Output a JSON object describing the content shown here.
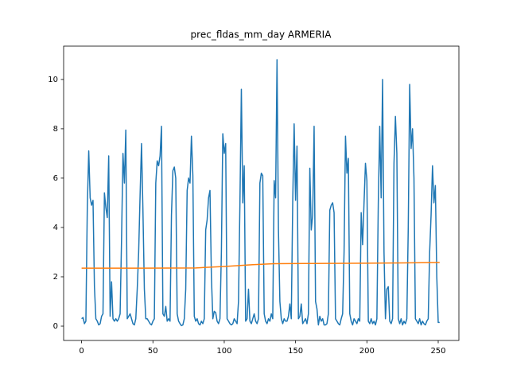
{
  "chart_data": {
    "type": "line",
    "title": "prec_fldas_mm_day ARMERIA",
    "x": [
      0,
      1,
      2,
      3,
      4,
      5,
      6,
      7,
      8,
      9,
      10,
      11,
      12,
      13,
      14,
      15,
      16,
      17,
      18,
      19,
      20,
      21,
      22,
      23,
      24,
      25,
      26,
      27,
      28,
      29,
      30,
      31,
      32,
      33,
      34,
      35,
      36,
      37,
      38,
      39,
      40,
      41,
      42,
      43,
      44,
      45,
      46,
      47,
      48,
      49,
      50,
      51,
      52,
      53,
      54,
      55,
      56,
      57,
      58,
      59,
      60,
      61,
      62,
      63,
      64,
      65,
      66,
      67,
      68,
      69,
      70,
      71,
      72,
      73,
      74,
      75,
      76,
      77,
      78,
      79,
      80,
      81,
      82,
      83,
      84,
      85,
      86,
      87,
      88,
      89,
      90,
      91,
      92,
      93,
      94,
      95,
      96,
      97,
      98,
      99,
      100,
      101,
      102,
      103,
      104,
      105,
      106,
      107,
      108,
      109,
      110,
      111,
      112,
      113,
      114,
      115,
      116,
      117,
      118,
      119,
      120,
      121,
      122,
      123,
      124,
      125,
      126,
      127,
      128,
      129,
      130,
      131,
      132,
      133,
      134,
      135,
      136,
      137,
      138,
      139,
      140,
      141,
      142,
      143,
      144,
      145,
      146,
      147,
      148,
      149,
      150,
      151,
      152,
      153,
      154,
      155,
      156,
      157,
      158,
      159,
      160,
      161,
      162,
      163,
      164,
      165,
      166,
      167,
      168,
      169,
      170,
      171,
      172,
      173,
      174,
      175,
      176,
      177,
      178,
      179,
      180,
      181,
      182,
      183,
      184,
      185,
      186,
      187,
      188,
      189,
      190,
      191,
      192,
      193,
      194,
      195,
      196,
      197,
      198,
      199,
      200,
      201,
      202,
      203,
      204,
      205,
      206,
      207,
      208,
      209,
      210,
      211,
      212,
      213,
      214,
      215,
      216,
      217,
      218,
      219,
      220,
      221,
      222,
      223,
      224,
      225,
      226,
      227,
      228,
      229,
      230,
      231,
      232,
      233,
      234,
      235,
      236,
      237,
      238,
      239,
      240,
      241,
      242,
      243,
      244,
      245,
      246,
      247,
      248,
      249,
      250,
      251
    ],
    "series": [
      {
        "color": "#1f77b4",
        "values": [
          0.3,
          0.35,
          0.1,
          0.2,
          4.8,
          7.1,
          5.2,
          4.9,
          5.1,
          1.6,
          0.3,
          0.2,
          0.05,
          0.1,
          0.4,
          0.5,
          5.4,
          4.8,
          4.4,
          6.9,
          0.4,
          1.8,
          0.3,
          0.2,
          0.3,
          0.2,
          0.3,
          0.5,
          3.5,
          7.0,
          5.8,
          7.95,
          0.3,
          0.4,
          0.5,
          0.3,
          0.1,
          0.05,
          0.3,
          1.5,
          3.0,
          5.3,
          7.4,
          4.7,
          1.5,
          0.3,
          0.3,
          0.2,
          0.1,
          0.05,
          0.2,
          0.3,
          5.8,
          6.7,
          6.5,
          6.9,
          8.1,
          0.5,
          0.4,
          0.8,
          0.2,
          0.3,
          0.2,
          4.5,
          6.3,
          6.45,
          6.0,
          0.5,
          0.2,
          0.1,
          0.02,
          0.05,
          0.3,
          1.5,
          5.5,
          6.0,
          5.8,
          7.7,
          6.1,
          0.4,
          0.2,
          0.3,
          0.1,
          0.05,
          0.2,
          0.1,
          0.3,
          3.9,
          4.3,
          5.2,
          5.5,
          2.0,
          0.3,
          0.6,
          0.55,
          0.2,
          0.1,
          0.3,
          3.0,
          7.8,
          7.0,
          7.4,
          0.3,
          0.2,
          0.1,
          0.05,
          0.1,
          0.3,
          0.2,
          0.1,
          1.0,
          5.0,
          9.6,
          5.0,
          6.5,
          0.2,
          0.3,
          1.5,
          0.2,
          0.1,
          0.3,
          0.5,
          0.2,
          0.1,
          0.3,
          5.8,
          6.2,
          6.1,
          0.5,
          0.2,
          0.1,
          0.3,
          0.2,
          0.5,
          0.3,
          5.9,
          5.2,
          10.8,
          3.9,
          1.0,
          0.3,
          0.1,
          0.3,
          0.2,
          0.2,
          0.4,
          0.9,
          0.3,
          5.0,
          8.2,
          5.1,
          7.3,
          0.3,
          0.4,
          0.9,
          0.1,
          0.2,
          0.3,
          0.1,
          0.5,
          6.4,
          3.9,
          4.5,
          8.1,
          1.0,
          0.7,
          0.05,
          0.4,
          0.2,
          0.3,
          0.05,
          0.05,
          0.1,
          0.5,
          4.7,
          4.9,
          5.0,
          4.6,
          0.3,
          0.2,
          0.1,
          0.05,
          0.3,
          0.5,
          3.0,
          7.7,
          6.2,
          6.8,
          0.5,
          0.2,
          0.05,
          0.3,
          0.2,
          0.1,
          0.3,
          0.2,
          4.6,
          3.3,
          5.0,
          6.6,
          5.9,
          0.2,
          0.1,
          0.3,
          0.1,
          0.2,
          0.05,
          0.3,
          5.0,
          8.1,
          5.2,
          10.0,
          3.0,
          0.3,
          1.5,
          1.6,
          0.2,
          0.1,
          0.3,
          6.6,
          8.5,
          7.0,
          0.3,
          0.1,
          0.3,
          0.05,
          0.2,
          0.1,
          0.3,
          4.0,
          9.8,
          7.2,
          8.0,
          6.0,
          0.3,
          0.2,
          0.1,
          0.3,
          0.05,
          0.2,
          0.1,
          0.05,
          0.2,
          0.3,
          3.0,
          4.5,
          6.5,
          5.0,
          5.7,
          2.0,
          0.15,
          0.15
        ]
      },
      {
        "color": "#ff7f0e",
        "x": [
          0,
          40,
          80,
          100,
          120,
          135,
          160,
          200,
          251
        ],
        "values": [
          2.35,
          2.35,
          2.36,
          2.42,
          2.49,
          2.53,
          2.54,
          2.55,
          2.58
        ]
      }
    ],
    "xlim": [
      -12.6,
      264.5
    ],
    "ylim": [
      -0.58,
      11.35
    ],
    "xticks": [
      0,
      50,
      100,
      150,
      200,
      250
    ],
    "yticks": [
      0,
      2,
      4,
      6,
      8,
      10
    ]
  }
}
